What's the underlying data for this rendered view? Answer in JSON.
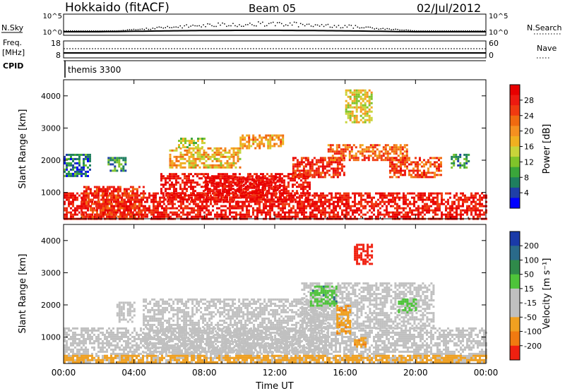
{
  "header": {
    "station": "Hokkaido (fitACF)",
    "beam": "Beam 05",
    "date": "02/Jul/2012"
  },
  "top_strips": {
    "nsky_label": "N.Sky",
    "nsky_ticks": [
      "10^5",
      "10^0"
    ],
    "nsearch_label": "N.Search",
    "nsearch_ticks": [
      "10^5",
      "10^0"
    ],
    "freq_label": "Freq.",
    "freq_unit": "[MHz]",
    "freq_ticks": [
      "18",
      "8"
    ],
    "nave_label": "Nave",
    "nave_ticks": [
      "60",
      "0"
    ],
    "cpid_label": "CPID",
    "cpid_value": "themis 3300"
  },
  "chart_data": [
    {
      "type": "heatmap",
      "name": "power",
      "ylabel": "Slant Range [km]",
      "xlabel": "",
      "y_ticks": [
        "4000",
        "3000",
        "2000",
        "1000"
      ],
      "ylim": [
        180,
        4500
      ],
      "x_ticks": [
        "00:00",
        "04:00",
        "08:00",
        "12:00",
        "16:00",
        "20:00",
        "00:00"
      ],
      "colorbar": {
        "label": "Power [dB]",
        "ticks": [
          "28",
          "24",
          "20",
          "16",
          "12",
          "8",
          "4"
        ],
        "range": [
          0,
          32
        ],
        "colors": [
          "#0000ff",
          "#1f3fa8",
          "#1f7f5f",
          "#3aa63a",
          "#7fc42a",
          "#c8d43a",
          "#f0b020",
          "#f59020",
          "#f06a10",
          "#f03a10",
          "#ee1a10",
          "#e80000"
        ]
      },
      "background_color": "#ffffff",
      "regions": [
        {
          "t0": 0.0,
          "t1": 24.0,
          "r0": 200,
          "r1": 1000,
          "value": 29
        },
        {
          "t0": 1.0,
          "t1": 4.5,
          "r0": 200,
          "r1": 1200,
          "value": 27
        },
        {
          "t0": 5.5,
          "t1": 14.0,
          "r0": 700,
          "r1": 1600,
          "value": 30
        },
        {
          "t0": 8.0,
          "t1": 12.5,
          "r0": 1000,
          "r1": 1500,
          "value": 31
        },
        {
          "t0": 13.0,
          "t1": 16.0,
          "r0": 1500,
          "r1": 2100,
          "value": 27
        },
        {
          "t0": 15.0,
          "t1": 19.5,
          "r0": 2000,
          "r1": 2500,
          "value": 23
        },
        {
          "t0": 18.5,
          "t1": 21.5,
          "r0": 1500,
          "r1": 2100,
          "value": 25
        },
        {
          "t0": 6.0,
          "t1": 10.0,
          "r0": 1800,
          "r1": 2400,
          "value": 18
        },
        {
          "t0": 6.5,
          "t1": 8.0,
          "r0": 2400,
          "r1": 2700,
          "value": 14
        },
        {
          "t0": 0.0,
          "t1": 1.5,
          "r0": 1500,
          "r1": 2200,
          "value": 6
        },
        {
          "t0": 2.5,
          "t1": 3.5,
          "r0": 1700,
          "r1": 2100,
          "value": 8
        },
        {
          "t0": 16.0,
          "t1": 17.5,
          "r0": 3200,
          "r1": 4200,
          "value": 16
        },
        {
          "t0": 10.0,
          "t1": 12.5,
          "r0": 2400,
          "r1": 2800,
          "value": 20
        },
        {
          "t0": 22.0,
          "t1": 23.0,
          "r0": 1800,
          "r1": 2200,
          "value": 9
        }
      ]
    },
    {
      "type": "heatmap",
      "name": "velocity",
      "ylabel": "Slant Range [km]",
      "xlabel": "Time UT",
      "y_ticks": [
        "4000",
        "3000",
        "2000",
        "1000"
      ],
      "ylim": [
        180,
        4500
      ],
      "x_ticks": [
        "00:00",
        "04:00",
        "08:00",
        "12:00",
        "16:00",
        "20:00",
        "00:00"
      ],
      "colorbar": {
        "label": "Velocity [m s⁻¹]",
        "ticks": [
          "200",
          "100",
          "50",
          "15",
          "-15",
          "-50",
          "-100",
          "-200"
        ],
        "colors": [
          "#1a3aa8",
          "#2a6a8a",
          "#2f8a4a",
          "#4ec43a",
          "#c0c0c0",
          "#c0c0c0",
          "#f0a020",
          "#f07a10",
          "#f02010"
        ]
      },
      "background_color": "#ffffff",
      "regions": [
        {
          "t0": 0.0,
          "t1": 24.0,
          "r0": 200,
          "r1": 1300,
          "value": 0
        },
        {
          "t0": 4.5,
          "t1": 15.0,
          "r0": 500,
          "r1": 2200,
          "value": 0
        },
        {
          "t0": 13.5,
          "t1": 21.0,
          "r0": 1300,
          "r1": 2700,
          "value": 0
        },
        {
          "t0": 14.0,
          "t1": 15.5,
          "r0": 2000,
          "r1": 2600,
          "value": 60
        },
        {
          "t0": 15.5,
          "t1": 16.3,
          "r0": 1100,
          "r1": 2000,
          "value": -60
        },
        {
          "t0": 16.5,
          "t1": 17.5,
          "r0": 3300,
          "r1": 3900,
          "value": -220
        },
        {
          "t0": 19.0,
          "t1": 20.0,
          "r0": 1800,
          "r1": 2200,
          "value": 40
        },
        {
          "t0": 0.0,
          "t1": 24.0,
          "r0": 200,
          "r1": 450,
          "value": -50
        },
        {
          "t0": 3.0,
          "t1": 4.0,
          "r0": 1500,
          "r1": 2100,
          "value": 0
        },
        {
          "t0": 16.5,
          "t1": 17.2,
          "r0": 700,
          "r1": 1000,
          "value": -60
        }
      ]
    }
  ]
}
